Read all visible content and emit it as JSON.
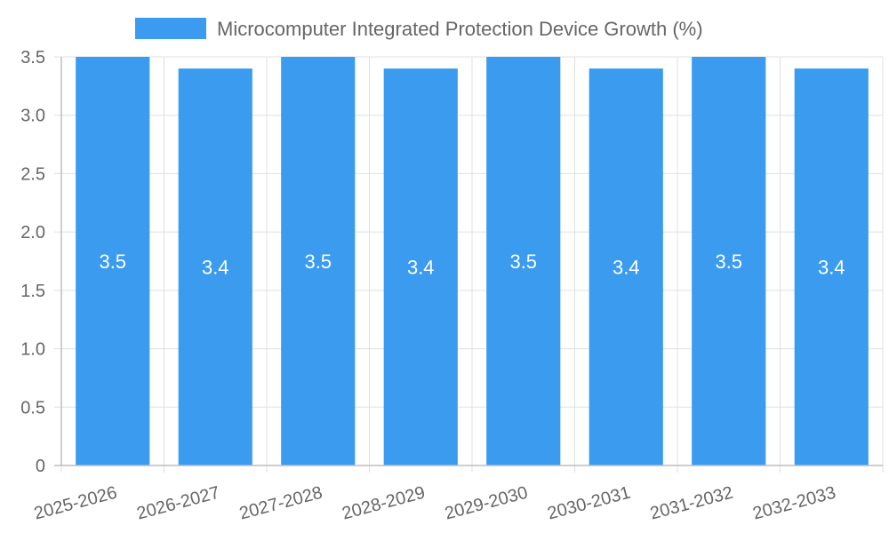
{
  "chart_data": {
    "type": "bar",
    "categories": [
      "2025-2026",
      "2026-2027",
      "2027-2028",
      "2028-2029",
      "2029-2030",
      "2030-2031",
      "2031-2032",
      "2032-2033"
    ],
    "series": [
      {
        "name": "Microcomputer Integrated Protection Device Growth (%)",
        "values": [
          3.5,
          3.4,
          3.5,
          3.4,
          3.5,
          3.4,
          3.5,
          3.4
        ],
        "color": "#3a9bef"
      }
    ],
    "data_labels": [
      "3.5",
      "3.4",
      "3.5",
      "3.4",
      "3.5",
      "3.4",
      "3.5",
      "3.4"
    ],
    "ylim": [
      0,
      3.5
    ],
    "y_ticks": [
      "0",
      "0.5",
      "1.0",
      "1.5",
      "2.0",
      "2.5",
      "3.0",
      "3.5"
    ],
    "legend_position": "top",
    "grid": true
  }
}
